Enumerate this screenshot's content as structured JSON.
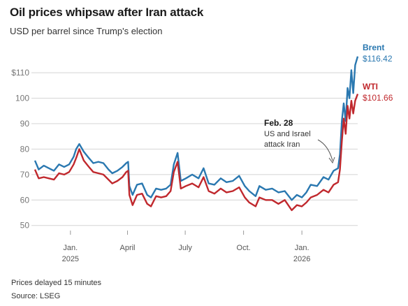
{
  "title": "Oil prices whipsaw after Iran attack",
  "subtitle": "USD per barrel since Trump's election",
  "footer": {
    "note": "Prices delayed 15 minutes",
    "source": "Source: LSEG"
  },
  "annotation": {
    "date": "Feb. 28",
    "line1": "US and Israel",
    "line2": "attack Iran"
  },
  "chart_data": {
    "type": "line",
    "ylim": [
      48,
      118
    ],
    "y_ticks": [
      {
        "value": 110,
        "label": "$110"
      },
      {
        "value": 100,
        "label": "100"
      },
      {
        "value": 90,
        "label": "90"
      },
      {
        "value": 80,
        "label": "80"
      },
      {
        "value": 70,
        "label": "70"
      },
      {
        "value": 60,
        "label": "60"
      },
      {
        "value": 50,
        "label": "50"
      }
    ],
    "x_ticks": [
      {
        "date": "2025-01-01",
        "label": "Jan.",
        "year": "2025"
      },
      {
        "date": "2025-04-01",
        "label": "April",
        "year": ""
      },
      {
        "date": "2025-07-01",
        "label": "July",
        "year": ""
      },
      {
        "date": "2025-10-01",
        "label": "Oct.",
        "year": ""
      },
      {
        "date": "2026-01-01",
        "label": "Jan.",
        "year": "2026"
      }
    ],
    "series": [
      {
        "name": "Brent",
        "color": "#2a78b0",
        "last_label": "$116.42",
        "points": [
          [
            "2024-11-06",
            75.5
          ],
          [
            "2024-11-12",
            72
          ],
          [
            "2024-11-20",
            73.5
          ],
          [
            "2024-11-28",
            72.5
          ],
          [
            "2024-12-06",
            71.5
          ],
          [
            "2024-12-14",
            74
          ],
          [
            "2024-12-22",
            73
          ],
          [
            "2024-12-30",
            74
          ],
          [
            "2025-01-06",
            77
          ],
          [
            "2025-01-10",
            80
          ],
          [
            "2025-01-15",
            82
          ],
          [
            "2025-01-22",
            79
          ],
          [
            "2025-01-30",
            76.5
          ],
          [
            "2025-02-06",
            74.5
          ],
          [
            "2025-02-14",
            75
          ],
          [
            "2025-02-22",
            74.5
          ],
          [
            "2025-03-02",
            72
          ],
          [
            "2025-03-08",
            70.5
          ],
          [
            "2025-03-16",
            71.5
          ],
          [
            "2025-03-24",
            73
          ],
          [
            "2025-03-30",
            74.5
          ],
          [
            "2025-04-02",
            75
          ],
          [
            "2025-04-04",
            65.5
          ],
          [
            "2025-04-09",
            62
          ],
          [
            "2025-04-16",
            66
          ],
          [
            "2025-04-24",
            66.5
          ],
          [
            "2025-05-02",
            62
          ],
          [
            "2025-05-08",
            61
          ],
          [
            "2025-05-16",
            64.5
          ],
          [
            "2025-05-24",
            64
          ],
          [
            "2025-06-01",
            64.5
          ],
          [
            "2025-06-08",
            66
          ],
          [
            "2025-06-13",
            74
          ],
          [
            "2025-06-19",
            78.5
          ],
          [
            "2025-06-24",
            67.5
          ],
          [
            "2025-07-02",
            68.5
          ],
          [
            "2025-07-12",
            70
          ],
          [
            "2025-07-22",
            68.5
          ],
          [
            "2025-07-30",
            72.5
          ],
          [
            "2025-08-07",
            66.5
          ],
          [
            "2025-08-16",
            66
          ],
          [
            "2025-08-26",
            68.5
          ],
          [
            "2025-09-04",
            67
          ],
          [
            "2025-09-14",
            67.5
          ],
          [
            "2025-09-24",
            69.5
          ],
          [
            "2025-10-03",
            65.5
          ],
          [
            "2025-10-10",
            63.5
          ],
          [
            "2025-10-20",
            61.5
          ],
          [
            "2025-10-26",
            65.5
          ],
          [
            "2025-11-05",
            64
          ],
          [
            "2025-11-15",
            64.5
          ],
          [
            "2025-11-25",
            63
          ],
          [
            "2025-12-05",
            63.5
          ],
          [
            "2025-12-16",
            60
          ],
          [
            "2025-12-24",
            62
          ],
          [
            "2026-01-01",
            61
          ],
          [
            "2026-01-08",
            63
          ],
          [
            "2026-01-15",
            66
          ],
          [
            "2026-01-25",
            65.5
          ],
          [
            "2026-02-04",
            69
          ],
          [
            "2026-02-12",
            68
          ],
          [
            "2026-02-20",
            71.5
          ],
          [
            "2026-02-27",
            72.5
          ],
          [
            "2026-03-02",
            78
          ],
          [
            "2026-03-05",
            91
          ],
          [
            "2026-03-08",
            98
          ],
          [
            "2026-03-11",
            91
          ],
          [
            "2026-03-14",
            104
          ],
          [
            "2026-03-17",
            100
          ],
          [
            "2026-03-20",
            111
          ],
          [
            "2026-03-23",
            102
          ],
          [
            "2026-03-26",
            113
          ],
          [
            "2026-03-30",
            116.42
          ]
        ]
      },
      {
        "name": "WTI",
        "color": "#c0282d",
        "last_label": "$101.66",
        "points": [
          [
            "2024-11-06",
            72
          ],
          [
            "2024-11-12",
            68.5
          ],
          [
            "2024-11-20",
            69
          ],
          [
            "2024-11-28",
            68.5
          ],
          [
            "2024-12-06",
            68
          ],
          [
            "2024-12-14",
            70.5
          ],
          [
            "2024-12-22",
            70
          ],
          [
            "2024-12-30",
            71
          ],
          [
            "2025-01-06",
            74
          ],
          [
            "2025-01-10",
            76.5
          ],
          [
            "2025-01-15",
            80
          ],
          [
            "2025-01-22",
            75.5
          ],
          [
            "2025-01-30",
            73
          ],
          [
            "2025-02-06",
            71
          ],
          [
            "2025-02-14",
            70.5
          ],
          [
            "2025-02-22",
            70
          ],
          [
            "2025-03-02",
            68
          ],
          [
            "2025-03-08",
            66.5
          ],
          [
            "2025-03-16",
            67.5
          ],
          [
            "2025-03-24",
            69
          ],
          [
            "2025-03-30",
            71
          ],
          [
            "2025-04-02",
            71.5
          ],
          [
            "2025-04-04",
            62
          ],
          [
            "2025-04-09",
            58
          ],
          [
            "2025-04-16",
            62
          ],
          [
            "2025-04-24",
            62.5
          ],
          [
            "2025-05-02",
            58.5
          ],
          [
            "2025-05-08",
            57.5
          ],
          [
            "2025-05-16",
            61.5
          ],
          [
            "2025-05-24",
            61
          ],
          [
            "2025-06-01",
            61.5
          ],
          [
            "2025-06-08",
            63.5
          ],
          [
            "2025-06-13",
            71
          ],
          [
            "2025-06-19",
            75
          ],
          [
            "2025-06-24",
            64.5
          ],
          [
            "2025-07-02",
            65.5
          ],
          [
            "2025-07-12",
            66.5
          ],
          [
            "2025-07-22",
            65
          ],
          [
            "2025-07-30",
            69
          ],
          [
            "2025-08-07",
            63.5
          ],
          [
            "2025-08-16",
            62.5
          ],
          [
            "2025-08-26",
            64.5
          ],
          [
            "2025-09-04",
            63
          ],
          [
            "2025-09-14",
            63.5
          ],
          [
            "2025-09-24",
            65
          ],
          [
            "2025-10-03",
            61
          ],
          [
            "2025-10-10",
            59
          ],
          [
            "2025-10-20",
            57.5
          ],
          [
            "2025-10-26",
            61
          ],
          [
            "2025-11-05",
            60
          ],
          [
            "2025-11-15",
            60
          ],
          [
            "2025-11-25",
            58.5
          ],
          [
            "2025-12-05",
            60
          ],
          [
            "2025-12-16",
            56
          ],
          [
            "2025-12-24",
            58
          ],
          [
            "2026-01-01",
            57.5
          ],
          [
            "2026-01-08",
            59
          ],
          [
            "2026-01-15",
            61
          ],
          [
            "2026-01-25",
            62
          ],
          [
            "2026-02-04",
            64
          ],
          [
            "2026-02-12",
            63
          ],
          [
            "2026-02-20",
            66
          ],
          [
            "2026-02-27",
            67
          ],
          [
            "2026-03-02",
            72
          ],
          [
            "2026-03-05",
            83
          ],
          [
            "2026-03-08",
            92
          ],
          [
            "2026-03-11",
            86
          ],
          [
            "2026-03-14",
            97
          ],
          [
            "2026-03-17",
            92
          ],
          [
            "2026-03-20",
            99
          ],
          [
            "2026-03-23",
            94
          ],
          [
            "2026-03-26",
            99
          ],
          [
            "2026-03-30",
            101.66
          ]
        ]
      }
    ]
  }
}
